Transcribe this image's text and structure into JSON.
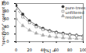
{
  "chart_data": {
    "type": "line",
    "x_label": "[%]",
    "y_label": "\"specificity\" content [%]",
    "x": [
      0,
      10,
      20,
      30,
      40,
      50,
      60,
      70,
      80,
      90,
      100
    ],
    "series": [
      {
        "name": "pure-trees",
        "color": "#333333",
        "marker": "circle",
        "line_style": "solid",
        "values": [
          95,
          72,
          55,
          43,
          35,
          29,
          25,
          22,
          19,
          17,
          15
        ]
      },
      {
        "name": "unfiltered",
        "color": "#777777",
        "marker": "square",
        "line_style": "dashed",
        "values": [
          88,
          65,
          50,
          39,
          32,
          27,
          23,
          20,
          18,
          16,
          14
        ]
      },
      {
        "name": "resolved",
        "color": "#aaaaaa",
        "marker": "triangle",
        "line_style": "dotted",
        "values": [
          60,
          42,
          30,
          22,
          17,
          14,
          12,
          10,
          9,
          8,
          7
        ]
      }
    ],
    "xlim": [
      0,
      100
    ],
    "xticks": [
      0,
      20,
      40,
      60,
      80,
      100
    ],
    "ylim": [
      0,
      100
    ],
    "yticks": [
      0,
      20,
      40,
      60,
      80,
      100
    ],
    "legend": "top-right"
  }
}
